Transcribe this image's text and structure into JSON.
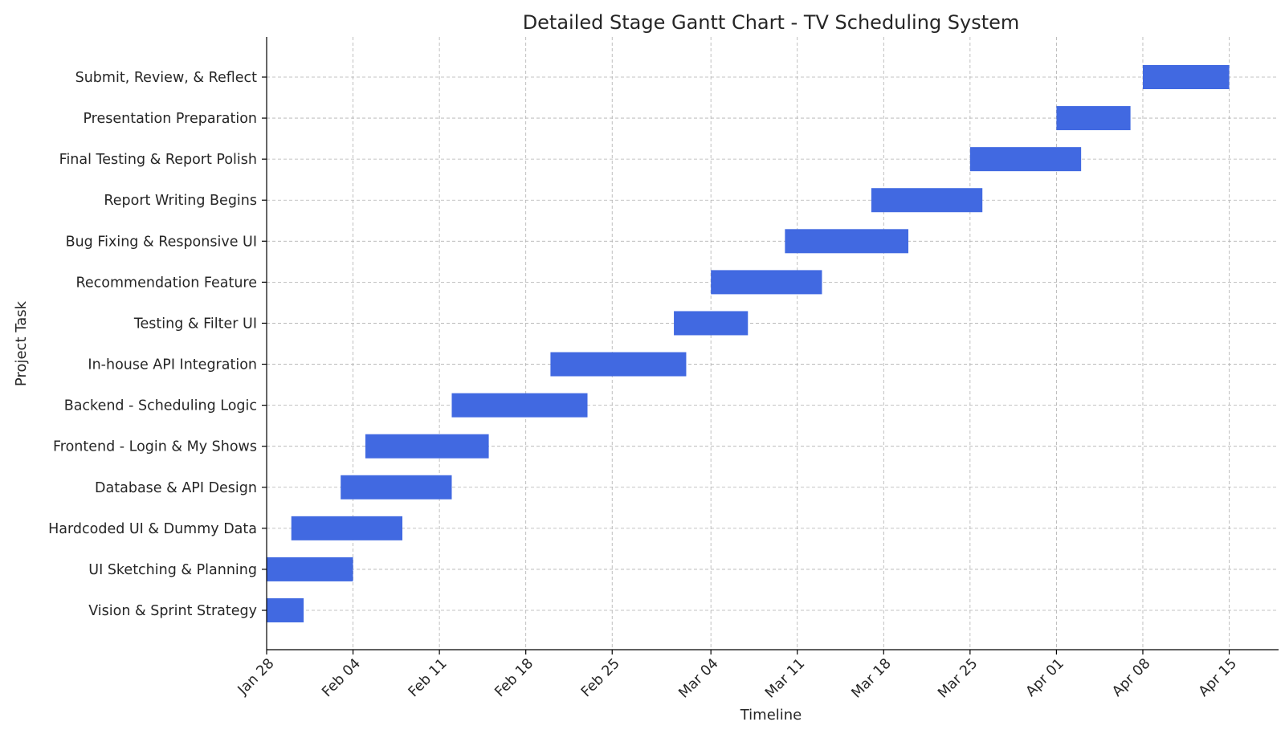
{
  "chart_data": {
    "type": "gantt",
    "title": "Detailed Stage Gantt Chart - TV Scheduling System",
    "xlabel": "Timeline",
    "ylabel": "Project Task",
    "bar_color": "#4169e1",
    "grid": true,
    "x_range": [
      "2024-01-28",
      "2024-04-19"
    ],
    "x_ticks": [
      {
        "date": "2024-01-28",
        "label": "Jan 28"
      },
      {
        "date": "2024-02-04",
        "label": "Feb 04"
      },
      {
        "date": "2024-02-11",
        "label": "Feb 11"
      },
      {
        "date": "2024-02-18",
        "label": "Feb 18"
      },
      {
        "date": "2024-02-25",
        "label": "Feb 25"
      },
      {
        "date": "2024-03-04",
        "label": "Mar 04"
      },
      {
        "date": "2024-03-11",
        "label": "Mar 11"
      },
      {
        "date": "2024-03-18",
        "label": "Mar 18"
      },
      {
        "date": "2024-03-25",
        "label": "Mar 25"
      },
      {
        "date": "2024-04-01",
        "label": "Apr 01"
      },
      {
        "date": "2024-04-08",
        "label": "Apr 08"
      },
      {
        "date": "2024-04-15",
        "label": "Apr 15"
      }
    ],
    "tasks": [
      {
        "name": "Vision & Sprint Strategy",
        "start": "2024-01-28",
        "end": "2024-01-31"
      },
      {
        "name": "UI Sketching & Planning",
        "start": "2024-01-28",
        "end": "2024-02-04"
      },
      {
        "name": "Hardcoded UI & Dummy Data",
        "start": "2024-01-30",
        "end": "2024-02-08"
      },
      {
        "name": "Database & API Design",
        "start": "2024-02-03",
        "end": "2024-02-12"
      },
      {
        "name": "Frontend - Login & My Shows",
        "start": "2024-02-05",
        "end": "2024-02-15"
      },
      {
        "name": "Backend - Scheduling Logic",
        "start": "2024-02-12",
        "end": "2024-02-23"
      },
      {
        "name": "In-house API Integration",
        "start": "2024-02-20",
        "end": "2024-03-02"
      },
      {
        "name": "Testing & Filter UI",
        "start": "2024-03-01",
        "end": "2024-03-07"
      },
      {
        "name": "Recommendation Feature",
        "start": "2024-03-04",
        "end": "2024-03-13"
      },
      {
        "name": "Bug Fixing & Responsive UI",
        "start": "2024-03-10",
        "end": "2024-03-20"
      },
      {
        "name": "Report Writing Begins",
        "start": "2024-03-17",
        "end": "2024-03-26"
      },
      {
        "name": "Final Testing & Report Polish",
        "start": "2024-03-25",
        "end": "2024-04-03"
      },
      {
        "name": "Presentation Preparation",
        "start": "2024-04-01",
        "end": "2024-04-07"
      },
      {
        "name": "Submit, Review, & Reflect",
        "start": "2024-04-08",
        "end": "2024-04-15"
      }
    ]
  }
}
